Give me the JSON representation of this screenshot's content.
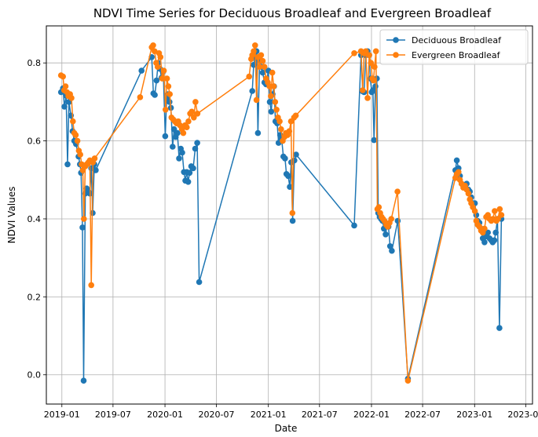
{
  "chart_data": {
    "type": "line",
    "title": "NDVI Time Series for Deciduous Broadleaf and Evergreen Broadleaf",
    "xlabel": "Date",
    "ylabel": "NDVI Values",
    "xlim": [
      "2018-11-07",
      "2023-07-25"
    ],
    "ylim": [
      -0.075,
      0.895
    ],
    "xticks": [
      "2019-01",
      "2019-07",
      "2020-01",
      "2020-07",
      "2021-01",
      "2021-07",
      "2022-01",
      "2022-07",
      "2023-01",
      "2023-07"
    ],
    "yticks": [
      "0.0",
      "0.2",
      "0.4",
      "0.6",
      "0.8"
    ],
    "grid": true,
    "legend_position": "top-right",
    "series": [
      {
        "name": "Deciduous Broadleaf",
        "color": "#1f77b4",
        "marker": "circle",
        "points": [
          [
            "2018-12-29",
            0.725
          ],
          [
            "2019-01-05",
            0.735
          ],
          [
            "2019-01-10",
            0.688
          ],
          [
            "2019-01-16",
            0.716
          ],
          [
            "2019-01-21",
            0.54
          ],
          [
            "2019-01-26",
            0.7
          ],
          [
            "2019-02-02",
            0.665
          ],
          [
            "2019-02-08",
            0.625
          ],
          [
            "2019-02-14",
            0.6
          ],
          [
            "2019-02-20",
            0.592
          ],
          [
            "2019-03-01",
            0.56
          ],
          [
            "2019-03-06",
            0.54
          ],
          [
            "2019-03-10",
            0.518
          ],
          [
            "2019-03-15",
            0.378
          ],
          [
            "2019-03-19",
            -0.015
          ],
          [
            "2019-03-25",
            0.465
          ],
          [
            "2019-03-30",
            0.478
          ],
          [
            "2019-04-05",
            0.47
          ],
          [
            "2019-04-10",
            0.465
          ],
          [
            "2019-04-15",
            0.53
          ],
          [
            "2019-04-20",
            0.415
          ],
          [
            "2019-04-26",
            0.54
          ],
          [
            "2019-05-01",
            0.525
          ],
          [
            "2019-10-10",
            0.78
          ],
          [
            "2019-11-15",
            0.815
          ],
          [
            "2019-11-21",
            0.722
          ],
          [
            "2019-11-26",
            0.718
          ],
          [
            "2019-12-02",
            0.755
          ],
          [
            "2019-12-08",
            0.8
          ],
          [
            "2019-12-14",
            0.785
          ],
          [
            "2019-12-20",
            0.762
          ],
          [
            "2019-12-26",
            0.778
          ],
          [
            "2020-01-02",
            0.612
          ],
          [
            "2020-01-07",
            0.71
          ],
          [
            "2020-01-12",
            0.72
          ],
          [
            "2020-01-17",
            0.7
          ],
          [
            "2020-01-22",
            0.685
          ],
          [
            "2020-01-28",
            0.585
          ],
          [
            "2020-02-02",
            0.63
          ],
          [
            "2020-02-08",
            0.61
          ],
          [
            "2020-02-14",
            0.62
          ],
          [
            "2020-02-20",
            0.555
          ],
          [
            "2020-02-26",
            0.58
          ],
          [
            "2020-03-02",
            0.57
          ],
          [
            "2020-03-08",
            0.52
          ],
          [
            "2020-03-13",
            0.498
          ],
          [
            "2020-03-18",
            0.52
          ],
          [
            "2020-03-23",
            0.495
          ],
          [
            "2020-03-28",
            0.518
          ],
          [
            "2020-04-03",
            0.535
          ],
          [
            "2020-04-10",
            0.53
          ],
          [
            "2020-04-17",
            0.58
          ],
          [
            "2020-04-24",
            0.595
          ],
          [
            "2020-05-01",
            0.238
          ],
          [
            "2020-11-05",
            0.728
          ],
          [
            "2020-11-10",
            0.795
          ],
          [
            "2020-11-15",
            0.815
          ],
          [
            "2020-11-20",
            0.83
          ],
          [
            "2020-11-25",
            0.62
          ],
          [
            "2020-12-01",
            0.81
          ],
          [
            "2020-12-07",
            0.79
          ],
          [
            "2020-12-12",
            0.775
          ],
          [
            "2020-12-18",
            0.75
          ],
          [
            "2020-12-24",
            0.745
          ],
          [
            "2021-01-01",
            0.78
          ],
          [
            "2021-01-06",
            0.7
          ],
          [
            "2021-01-11",
            0.675
          ],
          [
            "2021-01-16",
            0.72
          ],
          [
            "2021-01-21",
            0.74
          ],
          [
            "2021-01-26",
            0.65
          ],
          [
            "2021-02-01",
            0.645
          ],
          [
            "2021-02-06",
            0.595
          ],
          [
            "2021-02-12",
            0.615
          ],
          [
            "2021-02-17",
            0.605
          ],
          [
            "2021-02-23",
            0.56
          ],
          [
            "2021-03-01",
            0.555
          ],
          [
            "2021-03-06",
            0.515
          ],
          [
            "2021-03-12",
            0.51
          ],
          [
            "2021-03-18",
            0.482
          ],
          [
            "2021-03-23",
            0.545
          ],
          [
            "2021-03-28",
            0.395
          ],
          [
            "2021-04-03",
            0.55
          ],
          [
            "2021-04-09",
            0.565
          ],
          [
            "2021-11-01",
            0.383
          ],
          [
            "2021-11-25",
            0.82
          ],
          [
            "2021-12-01",
            0.727
          ],
          [
            "2021-12-06",
            0.725
          ],
          [
            "2021-12-12",
            0.82
          ],
          [
            "2021-12-18",
            0.83
          ],
          [
            "2021-12-24",
            0.82
          ],
          [
            "2021-12-28",
            0.76
          ],
          [
            "2022-01-02",
            0.725
          ],
          [
            "2022-01-06",
            0.73
          ],
          [
            "2022-01-10",
            0.602
          ],
          [
            "2022-01-15",
            0.74
          ],
          [
            "2022-01-20",
            0.76
          ],
          [
            "2022-01-25",
            0.415
          ],
          [
            "2022-01-30",
            0.405
          ],
          [
            "2022-02-04",
            0.4
          ],
          [
            "2022-02-09",
            0.395
          ],
          [
            "2022-02-14",
            0.375
          ],
          [
            "2022-02-20",
            0.36
          ],
          [
            "2022-02-25",
            0.385
          ],
          [
            "2022-03-02",
            0.38
          ],
          [
            "2022-03-08",
            0.33
          ],
          [
            "2022-03-14",
            0.318
          ],
          [
            "2022-04-04",
            0.395
          ],
          [
            "2022-05-10",
            -0.01
          ],
          [
            "2022-10-25",
            0.525
          ],
          [
            "2022-10-30",
            0.55
          ],
          [
            "2022-11-05",
            0.53
          ],
          [
            "2022-11-10",
            0.51
          ],
          [
            "2022-11-16",
            0.49
          ],
          [
            "2022-11-22",
            0.485
          ],
          [
            "2022-11-28",
            0.485
          ],
          [
            "2022-12-04",
            0.49
          ],
          [
            "2022-12-10",
            0.475
          ],
          [
            "2022-12-15",
            0.47
          ],
          [
            "2022-12-20",
            0.455
          ],
          [
            "2022-12-26",
            0.44
          ],
          [
            "2023-01-02",
            0.44
          ],
          [
            "2023-01-07",
            0.41
          ],
          [
            "2023-01-12",
            0.395
          ],
          [
            "2023-01-18",
            0.39
          ],
          [
            "2023-01-24",
            0.375
          ],
          [
            "2023-01-30",
            0.35
          ],
          [
            "2023-02-05",
            0.34
          ],
          [
            "2023-02-11",
            0.355
          ],
          [
            "2023-02-17",
            0.365
          ],
          [
            "2023-02-23",
            0.35
          ],
          [
            "2023-03-01",
            0.345
          ],
          [
            "2023-03-06",
            0.34
          ],
          [
            "2023-03-12",
            0.345
          ],
          [
            "2023-03-17",
            0.365
          ],
          [
            "2023-03-23",
            0.4
          ],
          [
            "2023-03-30",
            0.12
          ],
          [
            "2023-04-06",
            0.4
          ]
        ]
      },
      {
        "name": "Evergreen Broadleaf",
        "color": "#ff7f0e",
        "marker": "circle",
        "points": [
          [
            "2018-12-29",
            0.768
          ],
          [
            "2019-01-05",
            0.765
          ],
          [
            "2019-01-09",
            0.73
          ],
          [
            "2019-01-14",
            0.74
          ],
          [
            "2019-01-19",
            0.725
          ],
          [
            "2019-01-24",
            0.715
          ],
          [
            "2019-01-30",
            0.72
          ],
          [
            "2019-02-04",
            0.71
          ],
          [
            "2019-02-09",
            0.65
          ],
          [
            "2019-02-14",
            0.62
          ],
          [
            "2019-02-19",
            0.615
          ],
          [
            "2019-02-25",
            0.6
          ],
          [
            "2019-03-02",
            0.575
          ],
          [
            "2019-03-07",
            0.565
          ],
          [
            "2019-03-12",
            0.54
          ],
          [
            "2019-03-16",
            0.525
          ],
          [
            "2019-03-20",
            0.4
          ],
          [
            "2019-03-25",
            0.535
          ],
          [
            "2019-03-30",
            0.54
          ],
          [
            "2019-04-05",
            0.545
          ],
          [
            "2019-04-10",
            0.55
          ],
          [
            "2019-04-15",
            0.23
          ],
          [
            "2019-04-21",
            0.545
          ],
          [
            "2019-04-27",
            0.555
          ],
          [
            "2019-10-05",
            0.712
          ],
          [
            "2019-11-15",
            0.84
          ],
          [
            "2019-11-20",
            0.845
          ],
          [
            "2019-11-25",
            0.83
          ],
          [
            "2019-12-01",
            0.8
          ],
          [
            "2019-12-06",
            0.79
          ],
          [
            "2019-12-11",
            0.825
          ],
          [
            "2019-12-16",
            0.815
          ],
          [
            "2019-12-22",
            0.76
          ],
          [
            "2019-12-28",
            0.78
          ],
          [
            "2020-01-03",
            0.68
          ],
          [
            "2020-01-08",
            0.76
          ],
          [
            "2020-01-13",
            0.74
          ],
          [
            "2020-01-18",
            0.72
          ],
          [
            "2020-01-24",
            0.66
          ],
          [
            "2020-01-30",
            0.655
          ],
          [
            "2020-02-05",
            0.65
          ],
          [
            "2020-02-11",
            0.645
          ],
          [
            "2020-02-17",
            0.65
          ],
          [
            "2020-02-23",
            0.64
          ],
          [
            "2020-03-01",
            0.63
          ],
          [
            "2020-03-06",
            0.62
          ],
          [
            "2020-03-12",
            0.64
          ],
          [
            "2020-03-18",
            0.635
          ],
          [
            "2020-03-24",
            0.65
          ],
          [
            "2020-03-30",
            0.67
          ],
          [
            "2020-04-05",
            0.675
          ],
          [
            "2020-04-12",
            0.66
          ],
          [
            "2020-04-18",
            0.7
          ],
          [
            "2020-04-25",
            0.67
          ],
          [
            "2020-10-25",
            0.765
          ],
          [
            "2020-11-01",
            0.81
          ],
          [
            "2020-11-05",
            0.82
          ],
          [
            "2020-11-10",
            0.83
          ],
          [
            "2020-11-15",
            0.845
          ],
          [
            "2020-11-20",
            0.705
          ],
          [
            "2020-11-25",
            0.815
          ],
          [
            "2020-12-01",
            0.79
          ],
          [
            "2020-12-06",
            0.82
          ],
          [
            "2020-12-12",
            0.805
          ],
          [
            "2020-12-18",
            0.79
          ],
          [
            "2020-12-24",
            0.76
          ],
          [
            "2020-12-30",
            0.75
          ],
          [
            "2021-01-05",
            0.74
          ],
          [
            "2021-01-10",
            0.715
          ],
          [
            "2021-01-15",
            0.775
          ],
          [
            "2021-01-20",
            0.74
          ],
          [
            "2021-01-25",
            0.7
          ],
          [
            "2021-01-30",
            0.68
          ],
          [
            "2021-02-04",
            0.66
          ],
          [
            "2021-02-10",
            0.65
          ],
          [
            "2021-02-15",
            0.63
          ],
          [
            "2021-02-21",
            0.6
          ],
          [
            "2021-02-27",
            0.61
          ],
          [
            "2021-03-04",
            0.62
          ],
          [
            "2021-03-10",
            0.615
          ],
          [
            "2021-03-16",
            0.625
          ],
          [
            "2021-03-22",
            0.65
          ],
          [
            "2021-03-27",
            0.415
          ],
          [
            "2021-04-02",
            0.66
          ],
          [
            "2021-04-08",
            0.665
          ],
          [
            "2021-11-01",
            0.825
          ],
          [
            "2021-11-25",
            0.83
          ],
          [
            "2021-12-01",
            0.73
          ],
          [
            "2021-12-06",
            0.825
          ],
          [
            "2021-12-12",
            0.83
          ],
          [
            "2021-12-18",
            0.71
          ],
          [
            "2021-12-24",
            0.82
          ],
          [
            "2021-12-30",
            0.8
          ],
          [
            "2022-01-04",
            0.76
          ],
          [
            "2022-01-08",
            0.755
          ],
          [
            "2022-01-12",
            0.79
          ],
          [
            "2022-01-17",
            0.83
          ],
          [
            "2022-01-22",
            0.425
          ],
          [
            "2022-01-27",
            0.43
          ],
          [
            "2022-02-01",
            0.415
          ],
          [
            "2022-02-06",
            0.405
          ],
          [
            "2022-02-11",
            0.4
          ],
          [
            "2022-02-16",
            0.395
          ],
          [
            "2022-02-22",
            0.385
          ],
          [
            "2022-02-28",
            0.38
          ],
          [
            "2022-03-06",
            0.39
          ],
          [
            "2022-03-12",
            0.4
          ],
          [
            "2022-04-03",
            0.47
          ],
          [
            "2022-05-10",
            -0.015
          ],
          [
            "2022-10-25",
            0.505
          ],
          [
            "2022-10-30",
            0.515
          ],
          [
            "2022-11-05",
            0.52
          ],
          [
            "2022-11-10",
            0.5
          ],
          [
            "2022-11-16",
            0.49
          ],
          [
            "2022-11-22",
            0.48
          ],
          [
            "2022-11-28",
            0.485
          ],
          [
            "2022-12-04",
            0.475
          ],
          [
            "2022-12-10",
            0.465
          ],
          [
            "2022-12-15",
            0.45
          ],
          [
            "2022-12-20",
            0.44
          ],
          [
            "2022-12-26",
            0.43
          ],
          [
            "2023-01-02",
            0.42
          ],
          [
            "2023-01-07",
            0.395
          ],
          [
            "2023-01-12",
            0.385
          ],
          [
            "2023-01-18",
            0.38
          ],
          [
            "2023-01-24",
            0.37
          ],
          [
            "2023-01-30",
            0.365
          ],
          [
            "2023-02-05",
            0.375
          ],
          [
            "2023-02-11",
            0.405
          ],
          [
            "2023-02-17",
            0.41
          ],
          [
            "2023-02-23",
            0.4
          ],
          [
            "2023-03-01",
            0.395
          ],
          [
            "2023-03-07",
            0.4
          ],
          [
            "2023-03-13",
            0.42
          ],
          [
            "2023-03-19",
            0.395
          ],
          [
            "2023-03-25",
            0.4
          ],
          [
            "2023-03-31",
            0.425
          ],
          [
            "2023-04-06",
            0.41
          ]
        ]
      }
    ]
  }
}
